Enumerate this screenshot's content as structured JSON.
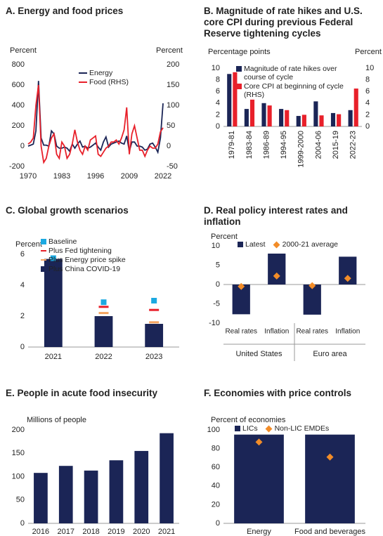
{
  "chart_data": [
    {
      "type": "line",
      "title": "A. Energy and food prices",
      "y_label": "Percent",
      "y2_label": "Percent",
      "x": [
        1970,
        1971,
        1972,
        1973,
        1974,
        1975,
        1976,
        1977,
        1978,
        1979,
        1980,
        1981,
        1982,
        1983,
        1984,
        1985,
        1986,
        1987,
        1988,
        1989,
        1990,
        1991,
        1992,
        1993,
        1994,
        1995,
        1996,
        1997,
        1998,
        1999,
        2000,
        2001,
        2002,
        2003,
        2004,
        2005,
        2006,
        2007,
        2008,
        2009,
        2010,
        2011,
        2012,
        2013,
        2014,
        2015,
        2016,
        2017,
        2018,
        2019,
        2020,
        2021,
        2022
      ],
      "series": [
        {
          "name": "Energy",
          "color": "#1b2556",
          "values": [
            0,
            10,
            20,
            150,
            640,
            80,
            10,
            10,
            0,
            150,
            120,
            0,
            -20,
            -20,
            -10,
            -20,
            -50,
            20,
            -20,
            20,
            50,
            -10,
            0,
            -20,
            -10,
            10,
            30,
            -10,
            -40,
            40,
            90,
            -10,
            20,
            30,
            40,
            50,
            30,
            20,
            100,
            -50,
            40,
            40,
            0,
            0,
            -10,
            -40,
            -30,
            20,
            30,
            -10,
            -60,
            80,
            420
          ]
        },
        {
          "name": "Food (RHS)",
          "color": "#e8202a",
          "axis": "y2",
          "values": [
            5,
            10,
            20,
            100,
            150,
            0,
            -40,
            -30,
            0,
            20,
            30,
            -20,
            -30,
            10,
            0,
            -30,
            -20,
            5,
            40,
            10,
            -10,
            -20,
            0,
            -10,
            15,
            20,
            25,
            -20,
            -25,
            -15,
            -5,
            0,
            10,
            10,
            15,
            5,
            20,
            40,
            95,
            -20,
            30,
            50,
            20,
            -10,
            -10,
            -25,
            -10,
            0,
            -5,
            -5,
            5,
            35,
            45
          ]
        }
      ],
      "xlim": [
        1970,
        2022
      ],
      "xticks": [
        1970,
        1983,
        1996,
        2009,
        2022
      ],
      "ylim": [
        -200,
        800
      ],
      "yticks": [
        -200,
        0,
        200,
        400,
        600,
        800
      ],
      "y2lim": [
        -50,
        200
      ],
      "y2ticks": [
        -50,
        0,
        50,
        100,
        150,
        200
      ]
    },
    {
      "type": "bar",
      "title": "B. Magnitude of rate hikes and U.S. core CPI during previous Federal Reserve tightening cycles",
      "y_label": "Percentage points",
      "y2_label": "Percent",
      "categories": [
        "1979-81",
        "1983-84",
        "1986-89",
        "1994-95",
        "1999-2000",
        "2004-06",
        "2015-19",
        "2022-23"
      ],
      "series": [
        {
          "name": "Magnitude of rate hikes over course of cycle",
          "color": "#1b2556",
          "values": [
            9.0,
            3.0,
            4.0,
            3.0,
            1.8,
            4.3,
            2.3,
            2.8
          ]
        },
        {
          "name": "Core CPI at beginning of cycle (RHS)",
          "color": "#e8202a",
          "axis": "y2",
          "values": [
            9.3,
            4.6,
            3.6,
            2.8,
            2.0,
            1.9,
            2.1,
            6.5
          ]
        }
      ],
      "ylim": [
        0,
        10
      ],
      "yticks": [
        0,
        2,
        4,
        6,
        8,
        10
      ],
      "y2lim": [
        0,
        10
      ],
      "y2ticks": [
        0,
        2,
        4,
        6,
        8,
        10
      ]
    },
    {
      "type": "bar",
      "title": "C. Global growth scenarios",
      "y_label": "Percent",
      "categories": [
        "2021",
        "2022",
        "2023"
      ],
      "series": [
        {
          "name": "Baseline",
          "color": "#1ba9e1",
          "marker": "square",
          "values": [
            5.75,
            2.9,
            3.0
          ]
        },
        {
          "name": "Plus Fed tightening",
          "color": "#e8202a",
          "marker": "dash",
          "values": [
            null,
            2.6,
            2.4
          ]
        },
        {
          "name": "Plus Energy price spike",
          "color": "#f4a460",
          "marker": "dash",
          "values": [
            null,
            2.2,
            1.6
          ]
        },
        {
          "name": "Plus China COVID-19",
          "color": "#1b2556",
          "values": [
            5.7,
            2.0,
            1.5
          ]
        }
      ],
      "ylim": [
        0,
        6
      ],
      "yticks": [
        0,
        2,
        4,
        6
      ]
    },
    {
      "type": "bar",
      "title": "D. Real policy interest rates and inflation",
      "y_label": "Percent",
      "categories": [
        "Real rates",
        "Inflation",
        "Real rates",
        "Inflation"
      ],
      "groups": [
        "United States",
        "Euro area"
      ],
      "series": [
        {
          "name": "Latest",
          "color": "#1b2556",
          "values": [
            -7.7,
            8.0,
            -7.8,
            7.2
          ]
        },
        {
          "name": "2000-21 average",
          "color": "#f28c28",
          "marker": "diamond",
          "values": [
            -0.5,
            2.2,
            -0.3,
            1.6
          ]
        }
      ],
      "ylim": [
        -10,
        10
      ],
      "yticks": [
        -10,
        -5,
        0,
        5,
        10
      ]
    },
    {
      "type": "bar",
      "title": "E. People in acute food insecurity",
      "y_label": "Millions of people",
      "categories": [
        "2016",
        "2017",
        "2018",
        "2019",
        "2020",
        "2021"
      ],
      "series": [
        {
          "color": "#1b2556",
          "values": [
            108,
            123,
            113,
            135,
            155,
            193
          ]
        }
      ],
      "ylim": [
        0,
        200
      ],
      "yticks": [
        0,
        50,
        100,
        150,
        200
      ]
    },
    {
      "type": "bar",
      "title": "F. Economies with price controls",
      "y_label": "Percent of economies",
      "categories": [
        "Energy",
        "Food and beverages"
      ],
      "series": [
        {
          "name": "LICs",
          "color": "#1b2556",
          "values": [
            95,
            95
          ]
        },
        {
          "name": "Non-LIC EMDEs",
          "color": "#f28c28",
          "marker": "diamond",
          "values": [
            87,
            71
          ]
        }
      ],
      "ylim": [
        0,
        100
      ],
      "yticks": [
        0,
        20,
        40,
        60,
        80,
        100
      ]
    }
  ]
}
